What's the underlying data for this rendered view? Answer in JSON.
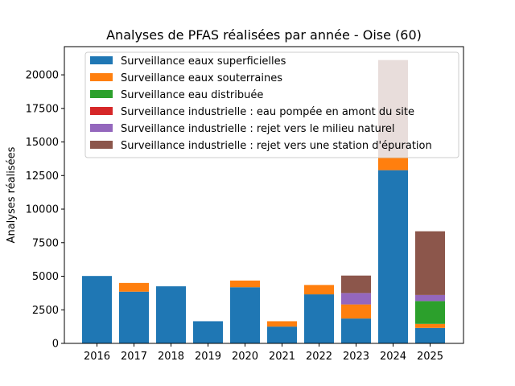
{
  "chart_data": {
    "type": "bar",
    "stacked": true,
    "title": "Analyses de PFAS réalisées par année - Oise (60)",
    "xlabel": "",
    "ylabel": "Analyses réalisées",
    "ylim": [
      0,
      22100
    ],
    "yticks": [
      0,
      2500,
      5000,
      7500,
      10000,
      12500,
      15000,
      17500,
      20000
    ],
    "categories": [
      "2016",
      "2017",
      "2018",
      "2019",
      "2020",
      "2021",
      "2022",
      "2023",
      "2024",
      "2025"
    ],
    "legend_position": "top-center",
    "series": [
      {
        "name": "Surveillance eaux superficielles",
        "color": "#1f77b4",
        "values": [
          5020,
          3850,
          4250,
          1650,
          4180,
          1250,
          3650,
          1850,
          12900,
          1150
        ]
      },
      {
        "name": "Surveillance eaux souterraines",
        "color": "#ff7f0e",
        "values": [
          0,
          650,
          0,
          0,
          500,
          400,
          700,
          1050,
          1000,
          300
        ]
      },
      {
        "name": "Surveillance eau distribuée",
        "color": "#2ca02c",
        "values": [
          0,
          0,
          0,
          0,
          0,
          0,
          0,
          0,
          0,
          1700
        ]
      },
      {
        "name": "Surveillance industrielle : eau pompée en amont du site",
        "color": "#d62728",
        "values": [
          0,
          0,
          0,
          0,
          0,
          0,
          0,
          0,
          0,
          0
        ]
      },
      {
        "name": "Surveillance industrielle : rejet vers le milieu naturel",
        "color": "#9467bd",
        "values": [
          0,
          0,
          0,
          0,
          0,
          0,
          0,
          850,
          0,
          450
        ]
      },
      {
        "name": "Surveillance industrielle : rejet vers une station d'épuration",
        "color": "#8c564b",
        "values": [
          0,
          0,
          0,
          0,
          0,
          0,
          0,
          1300,
          7200,
          4750
        ]
      }
    ]
  }
}
